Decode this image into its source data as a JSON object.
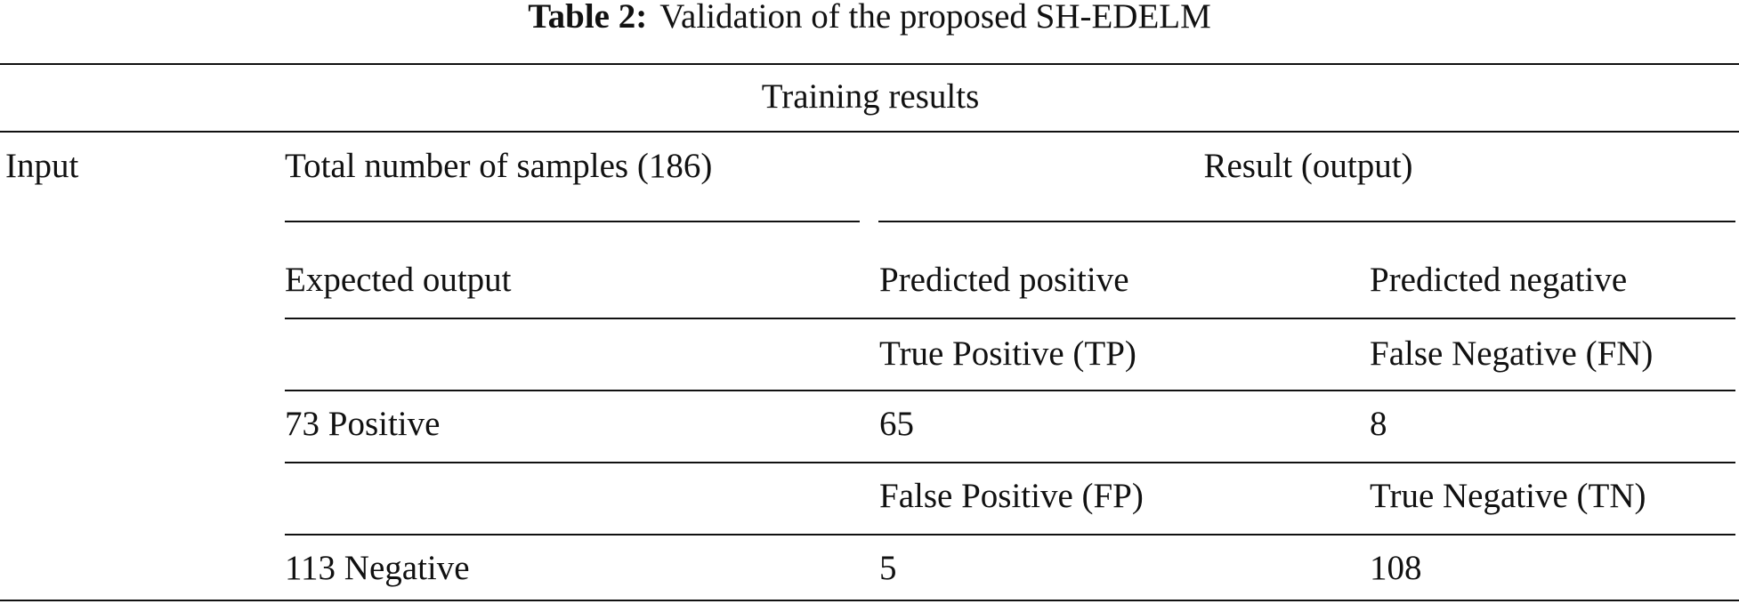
{
  "title": {
    "label": "Table 2:",
    "text": "Validation of the proposed SH-EDELM"
  },
  "table": {
    "section": "Training results",
    "header": [
      "Input",
      "Total number of samples (186)",
      "Result (output)"
    ],
    "subheader": [
      "Expected output",
      "Predicted positive",
      "Predicted negative"
    ],
    "rows": [
      {
        "cells": [
          "True Positive (TP)",
          "False Negative (FN)"
        ]
      },
      {
        "expected": "73 Positive",
        "cells": [
          65,
          8
        ]
      },
      {
        "cells": [
          "False Positive (FP)",
          "True Negative (TN)"
        ]
      },
      {
        "expected": "113 Negative",
        "cells": [
          5,
          108
        ]
      }
    ]
  }
}
